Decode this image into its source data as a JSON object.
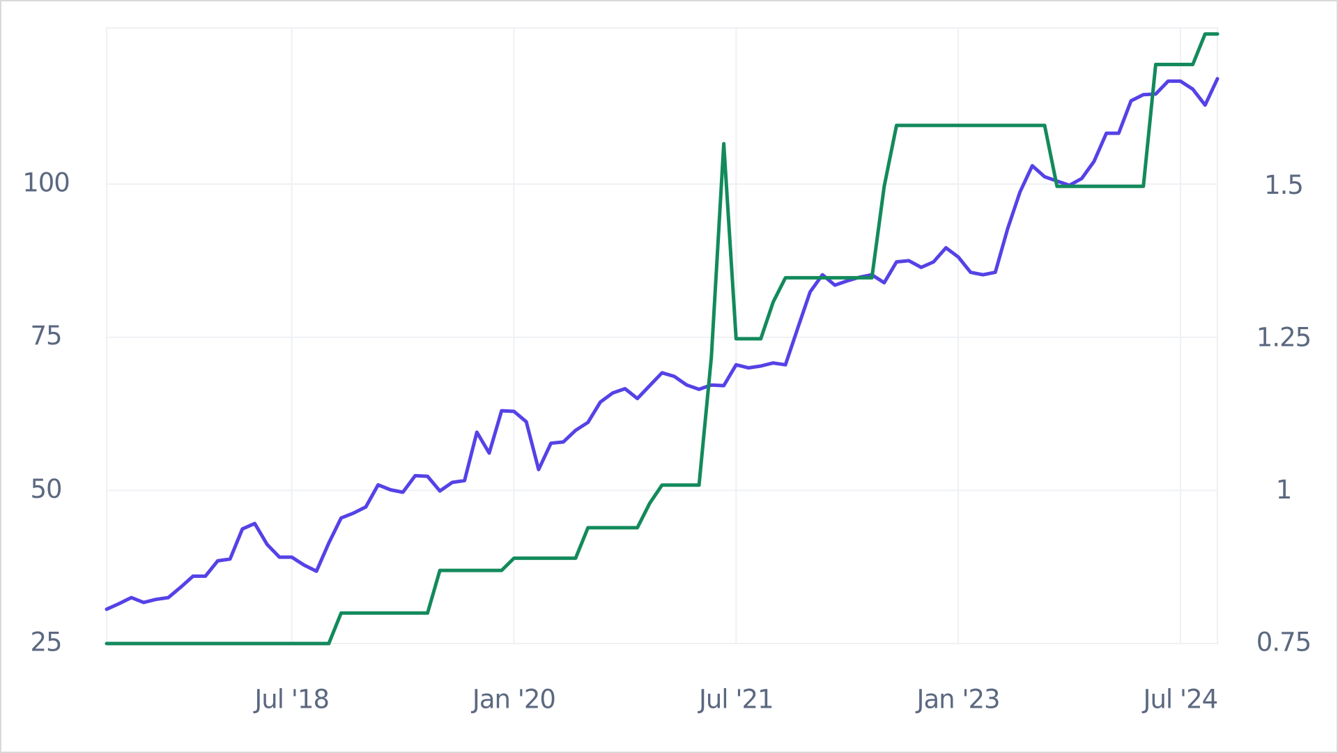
{
  "chart_data": {
    "type": "line",
    "x": [
      "2017-04",
      "2017-05",
      "2017-06",
      "2017-07",
      "2017-08",
      "2017-09",
      "2017-10",
      "2017-11",
      "2017-12",
      "2018-01",
      "2018-02",
      "2018-03",
      "2018-04",
      "2018-05",
      "2018-06",
      "2018-07",
      "2018-08",
      "2018-09",
      "2018-10",
      "2018-11",
      "2018-12",
      "2019-01",
      "2019-02",
      "2019-03",
      "2019-04",
      "2019-05",
      "2019-06",
      "2019-07",
      "2019-08",
      "2019-09",
      "2019-10",
      "2019-11",
      "2019-12",
      "2020-01",
      "2020-02",
      "2020-03",
      "2020-04",
      "2020-05",
      "2020-06",
      "2020-07",
      "2020-08",
      "2020-09",
      "2020-10",
      "2020-11",
      "2020-12",
      "2021-01",
      "2021-02",
      "2021-03",
      "2021-04",
      "2021-05",
      "2021-06",
      "2021-07",
      "2021-08",
      "2021-09",
      "2021-10",
      "2021-11",
      "2021-12",
      "2022-01",
      "2022-02",
      "2022-03",
      "2022-04",
      "2022-05",
      "2022-06",
      "2022-07",
      "2022-08",
      "2022-09",
      "2022-10",
      "2022-11",
      "2022-12",
      "2023-01",
      "2023-02",
      "2023-03",
      "2023-04",
      "2023-05",
      "2023-06",
      "2023-07",
      "2023-08",
      "2023-09",
      "2023-10",
      "2023-11",
      "2023-12",
      "2024-01",
      "2024-02",
      "2024-03",
      "2024-04",
      "2024-05",
      "2024-06",
      "2024-07",
      "2024-08",
      "2024-09",
      "2024-10"
    ],
    "series": [
      {
        "color": "#5542e6",
        "values": [
          30.6,
          31.5,
          32.5,
          31.7,
          32.2,
          32.5,
          34.2,
          36,
          36,
          38.5,
          38.8,
          43.7,
          44.6,
          41.2,
          39.1,
          39.1,
          37.8,
          36.8,
          41.4,
          45.5,
          46.3,
          47.3,
          50.9,
          50.1,
          49.7,
          52.4,
          52.3,
          49.9,
          51.3,
          51.6,
          59.5,
          56.1,
          63,
          62.9,
          61.2,
          53.4,
          57.7,
          57.9,
          59.8,
          61.1,
          64.4,
          65.9,
          66.6,
          65,
          67.1,
          69.2,
          68.6,
          67.2,
          66.5,
          67.2,
          67.1,
          70.5,
          70,
          70.3,
          70.8,
          70.5,
          76.5,
          82.4,
          85.2,
          83.5,
          84.2,
          84.8,
          85.2,
          83.9,
          87.3,
          87.5,
          86.4,
          87.3,
          89.6,
          88.1,
          85.6,
          85.2,
          85.6,
          92.7,
          98.7,
          103,
          101.2,
          100.5,
          99.8,
          100.9,
          103.7,
          108.3,
          108.3,
          113.6,
          114.6,
          114.7,
          116.8,
          116.8,
          115.5,
          112.9,
          117.2
        ]
      },
      {
        "color": "#138a5c",
        "axis": "y2",
        "values": [
          0.75,
          0.75,
          0.75,
          0.75,
          0.75,
          0.75,
          0.75,
          0.75,
          0.75,
          0.75,
          0.75,
          0.75,
          0.75,
          0.75,
          0.75,
          0.75,
          0.75,
          0.75,
          0.75,
          0.8,
          0.8,
          0.8,
          0.8,
          0.8,
          0.8,
          0.8,
          0.8,
          0.87,
          0.87,
          0.87,
          0.87,
          0.87,
          0.87,
          0.89,
          0.89,
          0.89,
          0.89,
          0.89,
          0.89,
          0.94,
          0.94,
          0.94,
          0.94,
          0.94,
          0.98,
          1.01,
          1.01,
          1.01,
          1.01,
          1.22,
          1.57,
          1.25,
          1.25,
          1.25,
          1.31,
          1.35,
          1.35,
          1.35,
          1.35,
          1.35,
          1.35,
          1.35,
          1.35,
          1.5,
          1.6,
          1.6,
          1.6,
          1.6,
          1.6,
          1.6,
          1.6,
          1.6,
          1.6,
          1.6,
          1.6,
          1.6,
          1.6,
          1.5,
          1.5,
          1.5,
          1.5,
          1.5,
          1.5,
          1.5,
          1.5,
          1.7,
          1.7,
          1.7,
          1.7,
          1.75,
          1.75
        ]
      }
    ],
    "xlim": [
      "2017-04",
      "2024-10"
    ],
    "xticks": [
      {
        "value": "2018-07",
        "label": "Jul '18"
      },
      {
        "value": "2020-01",
        "label": "Jan '20"
      },
      {
        "value": "2021-07",
        "label": "Jul '21"
      },
      {
        "value": "2023-01",
        "label": "Jan '23"
      },
      {
        "value": "2024-07",
        "label": "Jul '24"
      }
    ],
    "ylim": [
      25,
      125.5
    ],
    "yticks": [
      25,
      50,
      75,
      100
    ],
    "y2lim": [
      0.75,
      1.76
    ],
    "y2ticks": [
      0.75,
      1,
      1.25,
      1.5
    ],
    "grid": true
  }
}
